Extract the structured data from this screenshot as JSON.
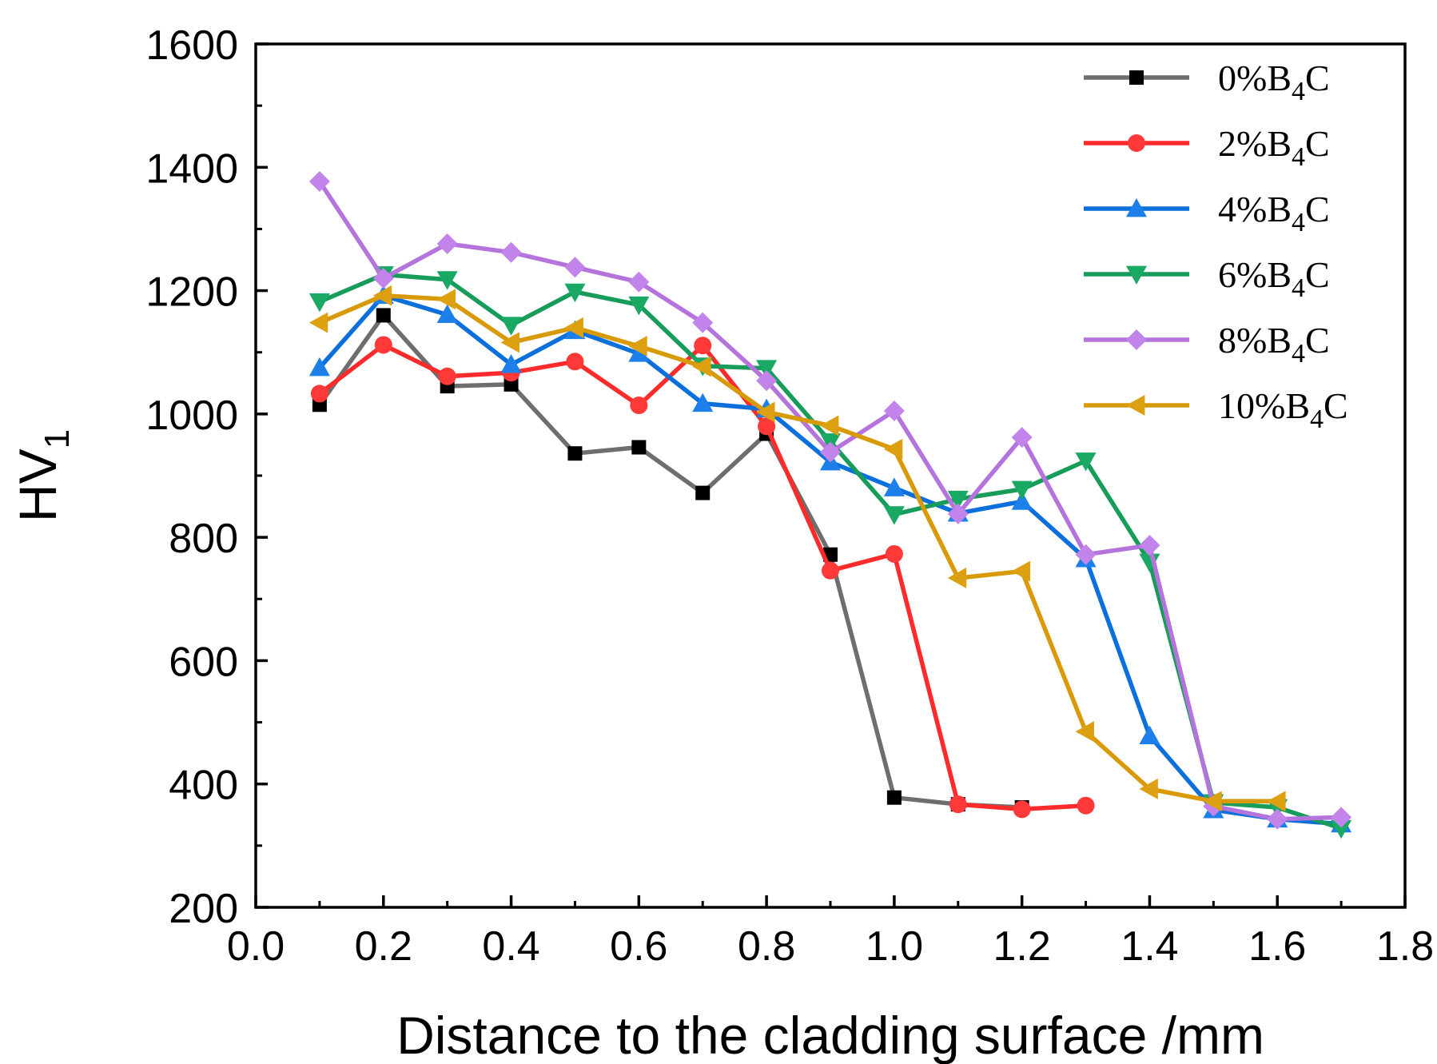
{
  "chart_data": {
    "type": "line",
    "title": "",
    "xlabel": "Distance to the cladding surface /mm",
    "ylabel": {
      "main": "HV",
      "sub": "1"
    },
    "xlim": [
      0.0,
      1.8
    ],
    "ylim": [
      200,
      1600
    ],
    "xticks": [
      0.0,
      0.2,
      0.4,
      0.6,
      0.8,
      1.0,
      1.2,
      1.4,
      1.6,
      1.8
    ],
    "xtick_labels": [
      "0.0",
      "0.2",
      "0.4",
      "0.6",
      "0.8",
      "1.0",
      "1.2",
      "1.4",
      "1.6",
      "1.8"
    ],
    "yticks": [
      200,
      400,
      600,
      800,
      1000,
      1200,
      1400,
      1600
    ],
    "ytick_labels": [
      "200",
      "400",
      "600",
      "800",
      "1000",
      "1200",
      "1400",
      "1600"
    ],
    "grid": false,
    "legend_position": "top-right",
    "series": [
      {
        "name": "0%B4C",
        "label_pre": "0%B",
        "label_sub": "4",
        "label_post": "C",
        "color": "#6e6e6e",
        "marker": "square",
        "marker_color": "#000000",
        "x": [
          0.1,
          0.2,
          0.3,
          0.4,
          0.5,
          0.6,
          0.7,
          0.8,
          0.9,
          1.0,
          1.1,
          1.2
        ],
        "y": [
          1015,
          1160,
          1045,
          1048,
          936,
          946,
          872,
          968,
          772,
          378,
          367,
          362
        ]
      },
      {
        "name": "2%B4C",
        "label_pre": "2%B",
        "label_sub": "4",
        "label_post": "C",
        "color": "#ff2a2a",
        "marker": "circle",
        "marker_color": "#ff3838",
        "x": [
          0.1,
          0.2,
          0.3,
          0.4,
          0.5,
          0.6,
          0.7,
          0.8,
          0.9,
          1.0,
          1.1,
          1.2,
          1.3
        ],
        "y": [
          1033,
          1112,
          1061,
          1067,
          1085,
          1014,
          1111,
          980,
          746,
          773,
          367,
          359,
          365
        ]
      },
      {
        "name": "4%B4C",
        "label_pre": "4%B",
        "label_sub": "4",
        "label_post": "C",
        "color": "#0b6fdc",
        "marker": "triangle-up",
        "marker_color": "#1c7fea",
        "x": [
          0.1,
          0.2,
          0.3,
          0.4,
          0.5,
          0.6,
          0.7,
          0.8,
          0.9,
          1.0,
          1.1,
          1.2,
          1.3,
          1.4,
          1.5,
          1.6,
          1.7
        ],
        "y": [
          1075,
          1192,
          1161,
          1080,
          1135,
          1098,
          1017,
          1008,
          922,
          880,
          839,
          858,
          765,
          478,
          358,
          343,
          335
        ]
      },
      {
        "name": "6%B4C",
        "label_pre": "6%B",
        "label_sub": "4",
        "label_post": "C",
        "color": "#179c5a",
        "marker": "triangle-down",
        "marker_color": "#1aa865",
        "x": [
          0.1,
          0.2,
          0.3,
          0.4,
          0.5,
          0.6,
          0.7,
          0.8,
          0.9,
          1.0,
          1.1,
          1.2,
          1.3,
          1.4,
          1.5,
          1.6,
          1.7
        ],
        "y": [
          1182,
          1226,
          1218,
          1144,
          1198,
          1177,
          1078,
          1074,
          955,
          837,
          862,
          878,
          924,
          760,
          370,
          362,
          328
        ]
      },
      {
        "name": "8%B4C",
        "label_pre": "8%B",
        "label_sub": "4",
        "label_post": "C",
        "color": "#b474dc",
        "marker": "diamond",
        "marker_color": "#c283ea",
        "x": [
          0.1,
          0.2,
          0.3,
          0.4,
          0.5,
          0.6,
          0.7,
          0.8,
          0.9,
          1.0,
          1.1,
          1.2,
          1.3,
          1.4,
          1.5,
          1.6,
          1.7
        ],
        "y": [
          1377,
          1220,
          1276,
          1262,
          1238,
          1214,
          1148,
          1054,
          938,
          1005,
          838,
          962,
          772,
          787,
          364,
          343,
          346
        ]
      },
      {
        "name": "10%B4C",
        "label_pre": "10%B",
        "label_sub": "4",
        "label_post": "C",
        "color": "#d89a08",
        "marker": "triangle-left",
        "marker_color": "#dca010",
        "x": [
          0.1,
          0.2,
          0.3,
          0.4,
          0.5,
          0.6,
          0.7,
          0.8,
          0.9,
          1.0,
          1.1,
          1.2,
          1.3,
          1.4,
          1.5,
          1.6
        ],
        "y": [
          1148,
          1192,
          1186,
          1116,
          1140,
          1110,
          1077,
          1003,
          981,
          943,
          734,
          745,
          485,
          392,
          372,
          372
        ]
      }
    ]
  }
}
